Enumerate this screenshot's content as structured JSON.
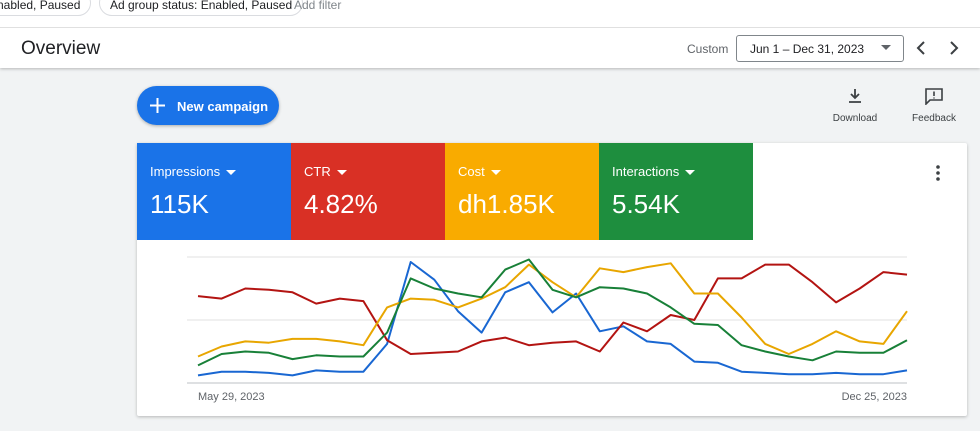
{
  "filters": [
    "Enabled, Paused",
    "Ad group status: Enabled, Paused"
  ],
  "add_filter": "Add filter",
  "header": {
    "title": "Overview",
    "range_label": "Custom",
    "date_range": "Jun 1 – Dec 31, 2023"
  },
  "toolbar": {
    "new_campaign": "New campaign",
    "download": "Download",
    "feedback": "Feedback"
  },
  "metrics": [
    "115K",
    "4.82%",
    "dh1.85K",
    "5.54K"
  ],
  "chart_data": {
    "type": "line",
    "categories": [
      "May 29, 2023",
      null,
      null,
      null,
      null,
      null,
      null,
      null,
      null,
      null,
      null,
      null,
      null,
      null,
      null,
      null,
      null,
      null,
      null,
      null,
      null,
      null,
      null,
      null,
      null,
      null,
      null,
      null,
      null,
      null,
      "Dec 25, 2023"
    ],
    "series": [
      {
        "name": "Impressions",
        "color": "#1967d2",
        "tile_color": "#1a73e8",
        "values": [
          6,
          9,
          9,
          8,
          6,
          10,
          9,
          9,
          31,
          96,
          82,
          57,
          40,
          72,
          80,
          56,
          71,
          41,
          45,
          33,
          31,
          17,
          16,
          9,
          8,
          7,
          7,
          8,
          7,
          7,
          10
        ]
      },
      {
        "name": "CTR",
        "color": "#b31412",
        "tile_color": "#d93025",
        "values": [
          69,
          67,
          75,
          74,
          72,
          63,
          67,
          65,
          34,
          23,
          24,
          25,
          33,
          36,
          30,
          32,
          33,
          25,
          48,
          41,
          54,
          50,
          83,
          83,
          94,
          94,
          80,
          64,
          75,
          88,
          86
        ]
      },
      {
        "name": "Cost",
        "color": "#e8a600",
        "tile_color": "#f9ab00",
        "values": [
          21,
          29,
          33,
          32,
          35,
          35,
          33,
          30,
          60,
          67,
          66,
          60,
          67,
          76,
          94,
          80,
          68,
          91,
          88,
          92,
          95,
          71,
          71,
          52,
          31,
          23,
          31,
          41,
          33,
          31,
          57
        ]
      },
      {
        "name": "Interactions",
        "color": "#188038",
        "tile_color": "#1e8e3e",
        "values": [
          14,
          23,
          25,
          24,
          19,
          22,
          21,
          21,
          40,
          83,
          75,
          71,
          68,
          90,
          98,
          74,
          68,
          76,
          75,
          71,
          60,
          47,
          46,
          30,
          25,
          21,
          18,
          25,
          24,
          24,
          34
        ]
      }
    ],
    "ylim": [
      0,
      100
    ],
    "yticks": [
      0,
      50,
      100
    ],
    "grid": true
  }
}
